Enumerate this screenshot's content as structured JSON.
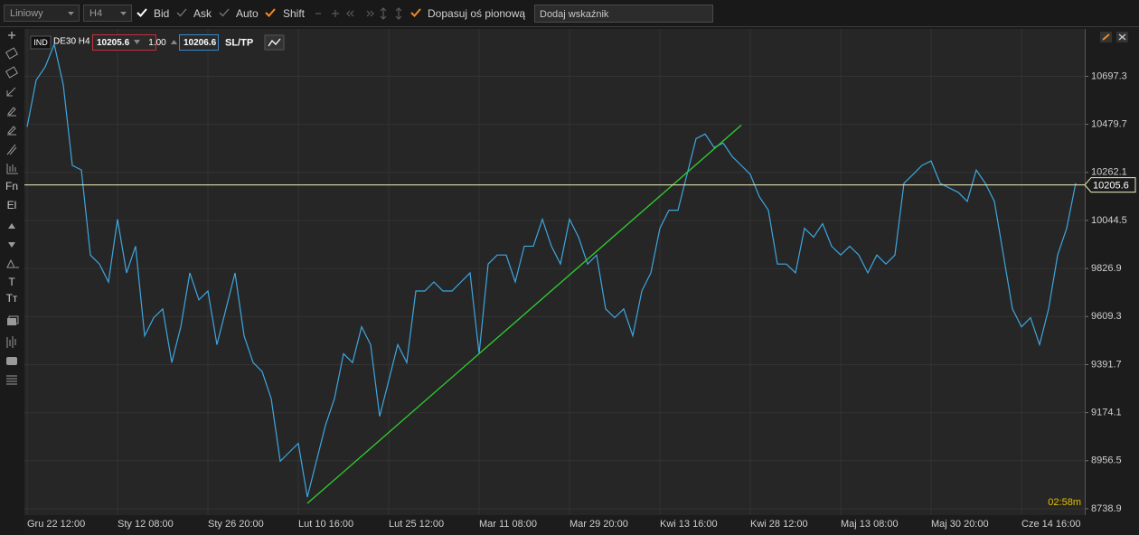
{
  "toolbar": {
    "chart_style": "Liniowy",
    "interval": "H4",
    "options": [
      "Bid",
      "Ask",
      "Auto",
      "Shift"
    ],
    "fit_axis": "Dopasuj oś pionową",
    "indicator_input": "Dodaj wskaźnik"
  },
  "sidebar": {
    "labels": [
      "Fn",
      "El",
      "T",
      "Tт"
    ]
  },
  "header": {
    "tag": "IND",
    "instrument": "DE30 H4",
    "sell": "10205.6",
    "volume": "1.00",
    "buy": "10206.6",
    "sltp": "SL/TP"
  },
  "timer": "02:58m",
  "chart_data": {
    "type": "line",
    "categories": [
      "Gru 22 12:00",
      null,
      null,
      null,
      null,
      null,
      null,
      null,
      null,
      null,
      "Sty 12 08:00",
      null,
      null,
      null,
      null,
      null,
      null,
      null,
      null,
      null,
      "Sty 26 20:00",
      null,
      null,
      null,
      null,
      null,
      null,
      null,
      null,
      null,
      "Lut 10 16:00",
      null,
      null,
      null,
      null,
      null,
      null,
      null,
      null,
      null,
      "Lut 25 12:00",
      null,
      null,
      null,
      null,
      null,
      null,
      null,
      null,
      null,
      "Mar 11 08:00",
      null,
      null,
      null,
      null,
      null,
      null,
      null,
      null,
      null,
      "Mar 29 20:00",
      null,
      null,
      null,
      null,
      null,
      null,
      null,
      null,
      null,
      "Kwi 13 16:00",
      null,
      null,
      null,
      null,
      null,
      null,
      null,
      null,
      null,
      "Kwi 28 12:00",
      null,
      null,
      null,
      null,
      null,
      null,
      null,
      null,
      null,
      "Maj 13 08:00",
      null,
      null,
      null,
      null,
      null,
      null,
      null,
      null,
      null,
      "Maj 30 20:00",
      null,
      null,
      null,
      null,
      null,
      null,
      null,
      null,
      null,
      "Cze 14 16:00",
      null,
      null,
      null,
      null,
      null,
      null
    ],
    "series": [
      {
        "name": "DE30",
        "color": "#3ea6df",
        "values": [
          10468,
          10680,
          10740,
          10842,
          10659,
          10294,
          10273,
          9888,
          9847,
          9766,
          10050,
          9807,
          9928,
          9522,
          9604,
          9644,
          9401,
          9563,
          9807,
          9685,
          9725,
          9482,
          9644,
          9807,
          9522,
          9401,
          9360,
          9238,
          8954,
          8995,
          9035,
          8792,
          8954,
          9116,
          9238,
          9441,
          9401,
          9563,
          9482,
          9157,
          9319,
          9482,
          9401,
          9725,
          9725,
          9766,
          9725,
          9725,
          9766,
          9807,
          9441,
          9847,
          9888,
          9888,
          9766,
          9928,
          9928,
          10050,
          9928,
          9847,
          10050,
          9969,
          9847,
          9888,
          9644,
          9604,
          9644,
          9522,
          9725,
          9807,
          10009,
          10091,
          10091,
          10253,
          10415,
          10436,
          10375,
          10395,
          10334,
          10294,
          10253,
          10152,
          10091,
          9847,
          9847,
          9807,
          10009,
          9969,
          10030,
          9928,
          9888,
          9928,
          9888,
          9807,
          9888,
          9847,
          9888,
          10213,
          10253,
          10294,
          10314,
          10213,
          10192,
          10172,
          10131,
          10273,
          10213,
          10131,
          9888,
          9644,
          9563,
          9604,
          9482,
          9644,
          9888,
          10009,
          10213
        ]
      }
    ],
    "trend_line": {
      "color": "#2fd12f",
      "start_index": 31,
      "start_value": 8763,
      "end_index": 79,
      "end_value": 10476
    },
    "price_line": {
      "value": 10205.6,
      "color": "#f0f0c0"
    },
    "ylim": [
      8710,
      10912
    ],
    "yticks": [
      8738.9,
      8956.5,
      9174.1,
      9391.7,
      9609.3,
      9826.9,
      10044.5,
      10262.1,
      10479.7,
      10697.3
    ],
    "grid": true
  }
}
